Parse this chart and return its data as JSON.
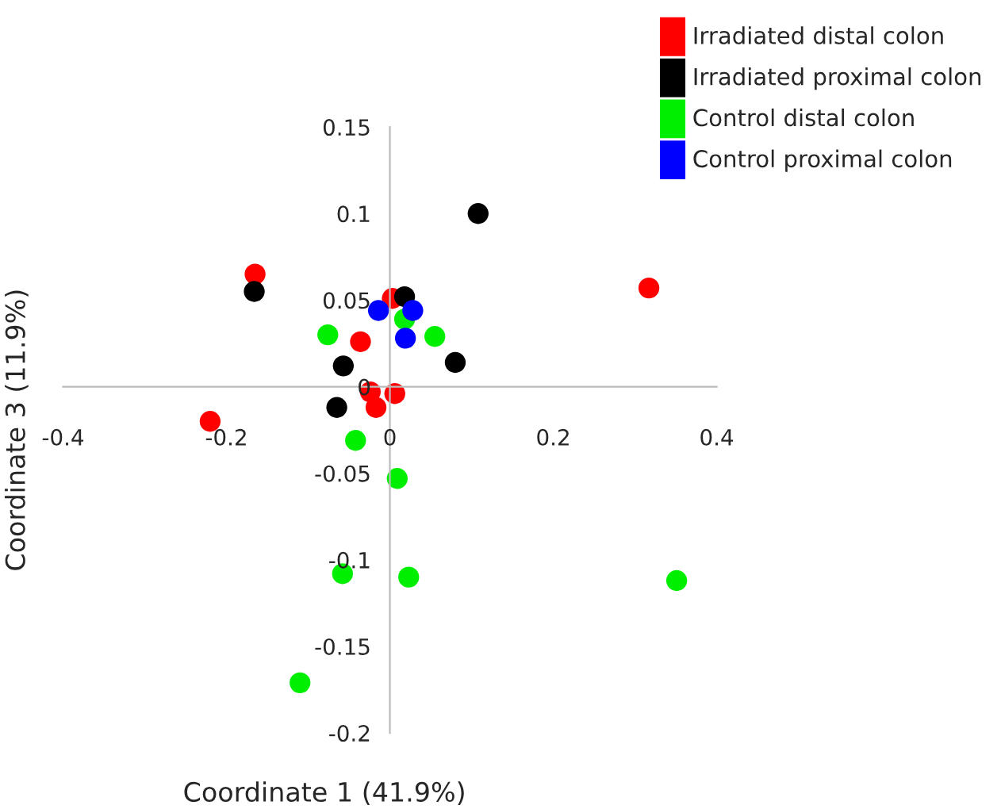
{
  "chart_data": {
    "type": "scatter",
    "xlabel": "Coordinate 1 (41.9%)",
    "ylabel": "Coordinate 3 (11.9%)",
    "xlim": [
      -0.4,
      0.4
    ],
    "ylim": [
      -0.2,
      0.15
    ],
    "xticks": [
      -0.4,
      -0.2,
      0,
      0.2,
      0.4
    ],
    "yticks": [
      -0.2,
      -0.15,
      -0.1,
      -0.05,
      0,
      0.05,
      0.1,
      0.15
    ],
    "grid": false,
    "legend": "top right",
    "marker": "circle",
    "series": [
      {
        "name": "Irradiated distal colon",
        "color": "#ff0000",
        "x": [
          -0.165,
          -0.22,
          -0.036,
          -0.024,
          -0.017,
          0.006,
          0.003,
          0.317
        ],
        "values": [
          0.065,
          -0.02,
          0.026,
          -0.003,
          -0.012,
          -0.004,
          0.051,
          0.057
        ]
      },
      {
        "name": "Irradiated proximal colon",
        "color": "#000000",
        "x": [
          -0.166,
          0.018,
          -0.057,
          0.08,
          -0.065,
          0.108
        ],
        "values": [
          0.055,
          0.052,
          0.012,
          0.014,
          -0.012,
          0.1
        ]
      },
      {
        "name": "Control distal colon",
        "color": "#00ee00",
        "x": [
          -0.076,
          0.018,
          0.055,
          -0.042,
          0.009,
          -0.058,
          0.023,
          -0.11,
          0.351
        ],
        "values": [
          0.03,
          0.039,
          0.029,
          -0.031,
          -0.053,
          -0.108,
          -0.11,
          -0.171,
          -0.112
        ]
      },
      {
        "name": "Control proximal colon",
        "color": "#0000ff",
        "x": [
          -0.014,
          0.028,
          0.019
        ],
        "values": [
          0.044,
          0.044,
          0.028
        ]
      }
    ]
  }
}
